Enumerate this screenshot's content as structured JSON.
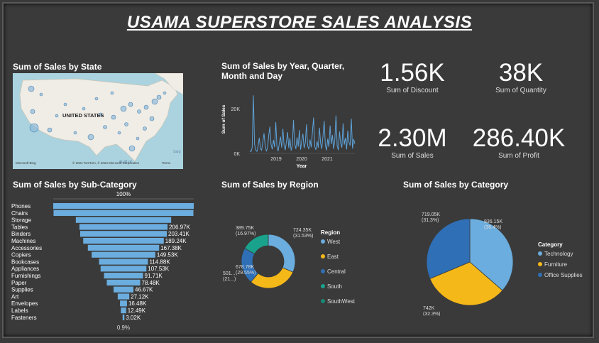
{
  "title": "USAMA SUPERSTORE SALES ANALYSIS",
  "map": {
    "title": "Sum of Sales by State",
    "country_label": "UNITED STATES",
    "gulf_label": "Gulf of",
    "attribution": "© 2024 TomTom, © 2024 Microsoft Corporation",
    "terms": "Terms",
    "brand": "Microsoft Bing",
    "sea_label": "Sarg"
  },
  "kpis": [
    {
      "value": "1.56K",
      "label": "Sum of Discount"
    },
    {
      "value": "38K",
      "label": "Sum of Quantity"
    },
    {
      "value": "2.30M",
      "label": "Sum of Sales"
    },
    {
      "value": "286.40K",
      "label": "Sum of Profit"
    }
  ],
  "chart_data": [
    {
      "type": "line",
      "title": "Sum of Sales by Year, Quarter, Month and Day",
      "xlabel": "Year",
      "ylabel": "Sum of Sales",
      "x_ticks": [
        "2019",
        "2020",
        "2021"
      ],
      "y_ticks": [
        "0K",
        "20K"
      ],
      "ylim": [
        0,
        28000
      ],
      "color": "#5ea2d8",
      "values": [
        1200,
        800,
        2500,
        26000,
        4000,
        1500,
        900,
        3000,
        7000,
        2000,
        1400,
        5000,
        9000,
        3500,
        1100,
        2200,
        8000,
        12000,
        4000,
        1800,
        6000,
        2800,
        14000,
        3200,
        1000,
        4500,
        7500,
        2600,
        11000,
        3800,
        1500,
        5200,
        9500,
        2400,
        6800,
        1300,
        3600,
        15000,
        4200,
        2000,
        7200,
        3000,
        10500,
        1700,
        5600,
        8800,
        2300,
        4800,
        13000,
        3400,
        1900,
        6200,
        2700,
        9200,
        16000,
        3100,
        1600,
        5400,
        2500,
        11500,
        4400,
        2100,
        7800,
        14500,
        3700,
        1400,
        6600,
        2900,
        12500,
        4100,
        8200,
        2000,
        5800,
        17000,
        3300,
        1500,
        9800,
        4600,
        2600,
        13500,
        3900,
        7000,
        1800,
        10200,
        5000,
        3500,
        15500,
        2200,
        6400,
        4300
      ]
    },
    {
      "type": "bar",
      "title": "Sum of Sales by Sub-Category",
      "top_label": "100%",
      "bottom_label": "0.9%",
      "categories": [
        "Phones",
        "Chairs",
        "Storage",
        "Tables",
        "Binders",
        "Machines",
        "Accessories",
        "Copiers",
        "Bookcases",
        "Appliances",
        "Furnishings",
        "Paper",
        "Supplies",
        "Art",
        "Envelopes",
        "Labels",
        "Fasteners"
      ],
      "values": [
        330010,
        328450,
        223840,
        206970,
        203410,
        189240,
        167380,
        149530,
        114880,
        107530,
        91710,
        78480,
        46670,
        27120,
        16480,
        12490,
        3020
      ],
      "value_labels": [
        "",
        "",
        "",
        "206.97K",
        "203.41K",
        "189.24K",
        "167.38K",
        "149.53K",
        "114.88K",
        "107.53K",
        "91.71K",
        "78.48K",
        "46.67K",
        "27.12K",
        "16.48K",
        "12.49K",
        "3.02K"
      ],
      "color": "#6badde"
    },
    {
      "type": "pie",
      "title": "Sum of Sales by Region",
      "legend_title": "Region",
      "categories": [
        "West",
        "East",
        "Central",
        "South",
        "SouthWest"
      ],
      "values": [
        724350,
        678780,
        501000,
        389750,
        0
      ],
      "colors": [
        "#6badde",
        "#f5b819",
        "#2f6fb5",
        "#19a38c",
        "#188a73"
      ],
      "labels": [
        "724.35K (31.53%)",
        "678.78K (29.55%)",
        "501... (21...)",
        "389.75K (16.97%)",
        ""
      ]
    },
    {
      "type": "pie",
      "title": "Sum of Sales by Category",
      "legend_title": "Category",
      "categories": [
        "Technology",
        "Furniture",
        "Office Supplies"
      ],
      "values": [
        836150,
        742000,
        719050
      ],
      "colors": [
        "#6badde",
        "#f5b819",
        "#2f6fb5"
      ],
      "labels": [
        "836.15K (36.4%)",
        "742K (32.3%)",
        "719.05K (31.3%)"
      ]
    }
  ]
}
